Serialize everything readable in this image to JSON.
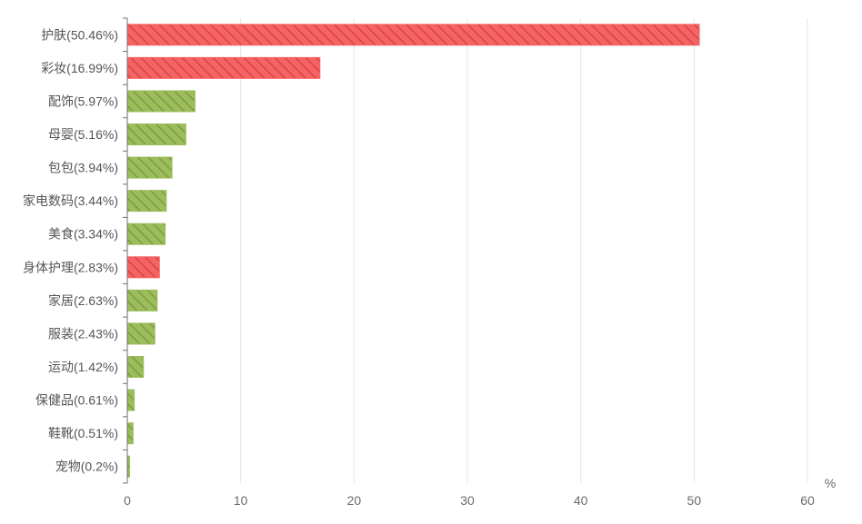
{
  "chart_data": {
    "type": "bar",
    "orientation": "horizontal",
    "title": "",
    "xlabel": "",
    "ylabel": "",
    "unit": "%",
    "xlim": [
      0,
      60
    ],
    "x_ticks": [
      0,
      10,
      20,
      30,
      40,
      50,
      60
    ],
    "grid": "vertical",
    "legend": "none",
    "colors": {
      "red": "#f56464",
      "green": "#9dbd5c"
    },
    "categories": [
      "护肤(50.46%)",
      "彩妆(16.99%)",
      "配饰(5.97%)",
      "母婴(5.16%)",
      "包包(3.94%)",
      "家电数码(3.44%)",
      "美食(3.34%)",
      "身体护理(2.83%)",
      "家居(2.63%)",
      "服装(2.43%)",
      "运动(1.42%)",
      "保健品(0.61%)",
      "鞋靴(0.51%)",
      "宠物(0.2%)"
    ],
    "values": [
      50.46,
      16.99,
      5.97,
      5.16,
      3.94,
      3.44,
      3.34,
      2.83,
      2.63,
      2.43,
      1.42,
      0.61,
      0.51,
      0.2
    ],
    "bar_colors": [
      "red",
      "red",
      "green",
      "green",
      "green",
      "green",
      "green",
      "red",
      "green",
      "green",
      "green",
      "green",
      "green",
      "green"
    ]
  }
}
